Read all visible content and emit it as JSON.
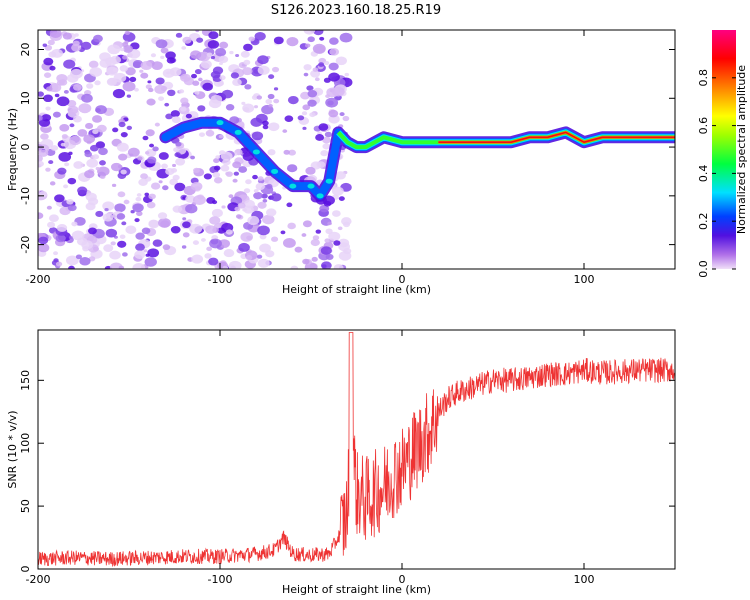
{
  "title": "S126.2023.160.18.25.R19",
  "chart_data": [
    {
      "type": "heatmap",
      "xlabel": "Height of straight line (km)",
      "ylabel": "Frequency (Hz)",
      "xlim": [
        -200,
        150
      ],
      "ylim": [
        -25,
        24
      ],
      "xticks": [
        -200,
        -100,
        0,
        100
      ],
      "yticks": [
        -20,
        -10,
        0,
        10,
        20
      ],
      "ridge": {
        "x": [
          -130,
          -120,
          -110,
          -100,
          -90,
          -80,
          -70,
          -60,
          -50,
          -45,
          -40,
          -35,
          -30,
          -25,
          -20,
          -15,
          -10,
          0,
          10,
          20,
          30,
          40,
          50,
          60,
          70,
          80,
          90,
          100,
          110,
          120,
          130,
          140,
          150
        ],
        "y": [
          2,
          4,
          5,
          5,
          3,
          -1,
          -5,
          -8,
          -8,
          -10,
          -7,
          3,
          1,
          0,
          0,
          1,
          2,
          1,
          1,
          1,
          1,
          1,
          1,
          1,
          2,
          2,
          3,
          1,
          2,
          2,
          2,
          2,
          2
        ]
      },
      "colorbar": {
        "label": "Normalized spectral amplitude",
        "range": [
          0.0,
          1.0
        ],
        "ticks": [
          "0.0",
          "0.2",
          "0.4",
          "0.6",
          "0.8"
        ]
      }
    },
    {
      "type": "line",
      "xlabel": "Height of straight line (km)",
      "ylabel": "SNR (10 * v/v)",
      "xlim": [
        -200,
        150
      ],
      "ylim": [
        0,
        190
      ],
      "xticks": [
        -200,
        -100,
        0,
        100
      ],
      "yticks": [
        0,
        50,
        100,
        150
      ],
      "color": "#ee3333",
      "series": [
        {
          "x": [
            -200,
            -180,
            -160,
            -140,
            -120,
            -100,
            -80,
            -70,
            -65,
            -60,
            -50,
            -40,
            -35,
            -30,
            -28,
            -25,
            -20,
            -15,
            -10,
            -5,
            0,
            5,
            10,
            15,
            20,
            25,
            30,
            40,
            50,
            60,
            70,
            80,
            90,
            100,
            110,
            120,
            130,
            140,
            150
          ],
          "values": [
            8,
            9,
            8,
            9,
            10,
            10,
            12,
            15,
            25,
            12,
            11,
            12,
            25,
            45,
            120,
            60,
            55,
            60,
            65,
            75,
            80,
            90,
            100,
            110,
            125,
            135,
            140,
            145,
            150,
            150,
            152,
            155,
            155,
            158,
            156,
            157,
            158,
            158,
            158
          ]
        }
      ]
    }
  ]
}
